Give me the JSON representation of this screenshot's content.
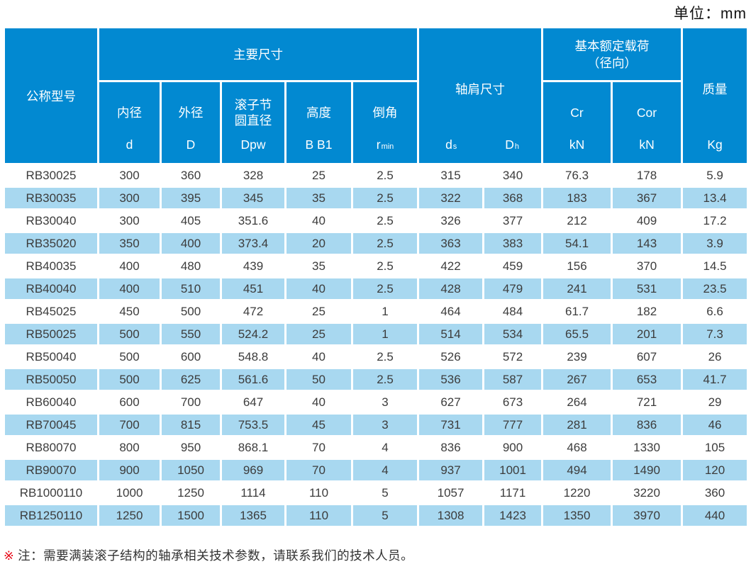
{
  "unit_label": "单位：mm",
  "colors": {
    "header_blue": "#0289d1",
    "row_alt_blue": "#a8d8f0",
    "row_white": "#ffffff",
    "grid_white": "#ffffff",
    "data_text": "#3c3c3c",
    "note_marker_red": "#e60012"
  },
  "table": {
    "header": {
      "model_label": "公称型号",
      "main_dims_label": "主要尺寸",
      "shoulder_label": "轴肩尺寸",
      "load_label": "基本额定载荷\n（径向）",
      "mass_label": "质量",
      "mass_sym": "Kg",
      "sub_cols": [
        {
          "name": "内径",
          "sym": "d"
        },
        {
          "name": "外径",
          "sym": "D"
        },
        {
          "name": "滚子节\n圆直径",
          "sym": "Dpw"
        },
        {
          "name": "高度",
          "sym": "B B1"
        }
      ],
      "chamfer": {
        "name": "倒角",
        "base": "r",
        "sub": "min"
      },
      "shoulder_syms": [
        {
          "base": "d",
          "sub": "s"
        },
        {
          "base": "D",
          "sub": "h"
        }
      ],
      "load_cols": [
        {
          "name": "Cr",
          "sym": "kN"
        },
        {
          "name": "Cor",
          "sym": "kN"
        }
      ]
    },
    "rows": [
      [
        "RB30025",
        "300",
        "360",
        "328",
        "25",
        "2.5",
        "315",
        "340",
        "76.3",
        "178",
        "5.9"
      ],
      [
        "RB30035",
        "300",
        "395",
        "345",
        "35",
        "2.5",
        "322",
        "368",
        "183",
        "367",
        "13.4"
      ],
      [
        "RB30040",
        "300",
        "405",
        "351.6",
        "40",
        "2.5",
        "326",
        "377",
        "212",
        "409",
        "17.2"
      ],
      [
        "RB35020",
        "350",
        "400",
        "373.4",
        "20",
        "2.5",
        "363",
        "383",
        "54.1",
        "143",
        "3.9"
      ],
      [
        "RB40035",
        "400",
        "480",
        "439",
        "35",
        "2.5",
        "422",
        "459",
        "156",
        "370",
        "14.5"
      ],
      [
        "RB40040",
        "400",
        "510",
        "451",
        "40",
        "2.5",
        "428",
        "479",
        "241",
        "531",
        "23.5"
      ],
      [
        "RB45025",
        "450",
        "500",
        "472",
        "25",
        "1",
        "464",
        "484",
        "61.7",
        "182",
        "6.6"
      ],
      [
        "RB50025",
        "500",
        "550",
        "524.2",
        "25",
        "1",
        "514",
        "534",
        "65.5",
        "201",
        "7.3"
      ],
      [
        "RB50040",
        "500",
        "600",
        "548.8",
        "40",
        "2.5",
        "526",
        "572",
        "239",
        "607",
        "26"
      ],
      [
        "RB50050",
        "500",
        "625",
        "561.6",
        "50",
        "2.5",
        "536",
        "587",
        "267",
        "653",
        "41.7"
      ],
      [
        "RB60040",
        "600",
        "700",
        "647",
        "40",
        "3",
        "627",
        "673",
        "264",
        "721",
        "29"
      ],
      [
        "RB70045",
        "700",
        "815",
        "753.5",
        "45",
        "3",
        "731",
        "777",
        "281",
        "836",
        "46"
      ],
      [
        "RB80070",
        "800",
        "950",
        "868.1",
        "70",
        "4",
        "836",
        "900",
        "468",
        "1330",
        "105"
      ],
      [
        "RB90070",
        "900",
        "1050",
        "969",
        "70",
        "4",
        "937",
        "1001",
        "494",
        "1490",
        "120"
      ],
      [
        "RB1000110",
        "1000",
        "1250",
        "1114",
        "110",
        "5",
        "1057",
        "1171",
        "1220",
        "3220",
        "360"
      ],
      [
        "RB1250110",
        "1250",
        "1500",
        "1365",
        "110",
        "5",
        "1308",
        "1423",
        "1350",
        "3970",
        "440"
      ]
    ]
  },
  "note": {
    "marker": "※",
    "text": "注：需要满装滚子结构的轴承相关技术参数，请联系我们的技术人员。"
  }
}
